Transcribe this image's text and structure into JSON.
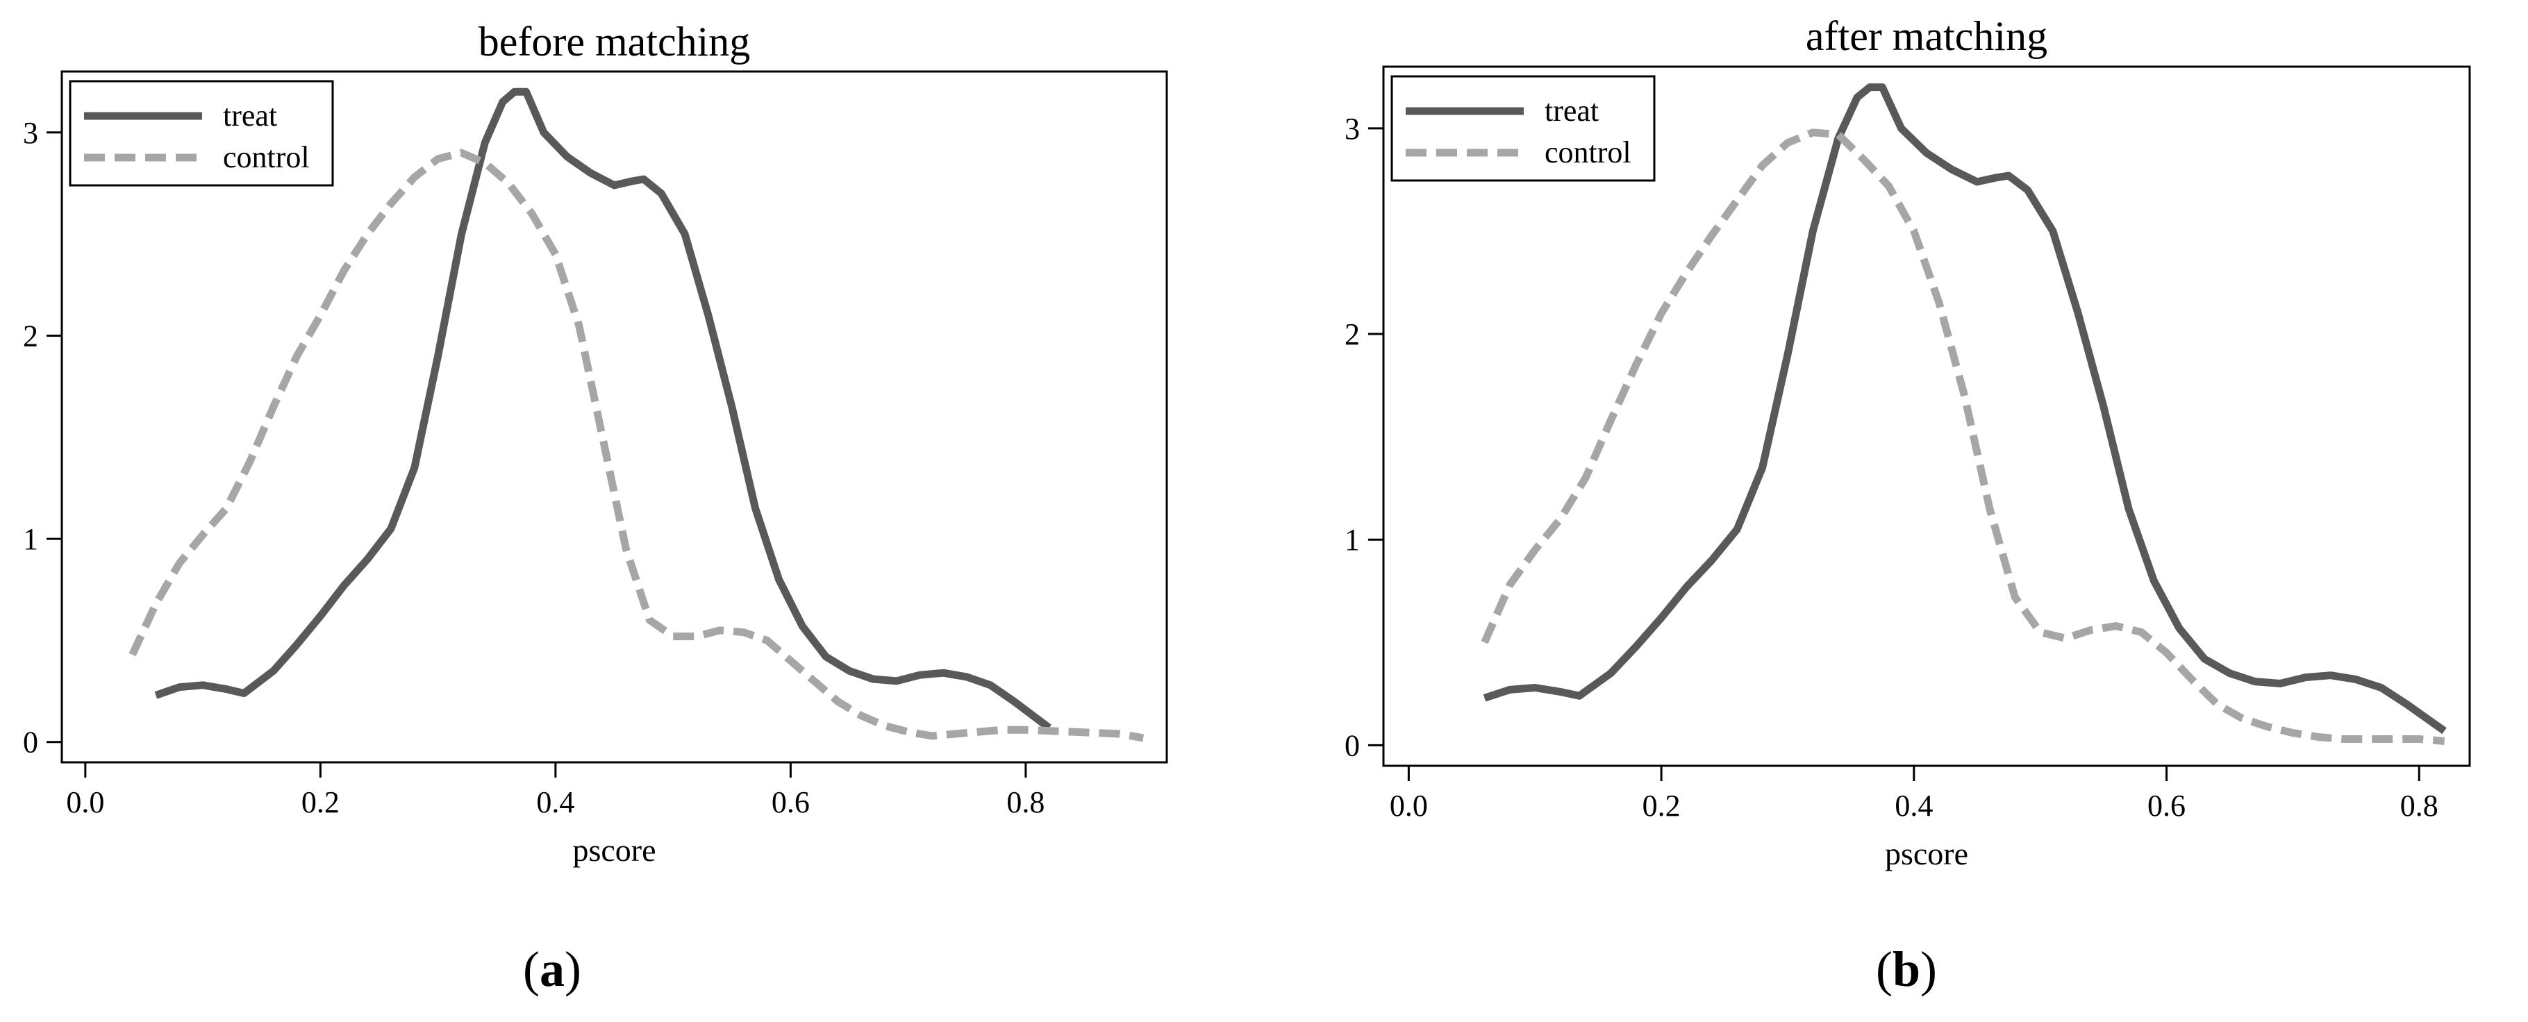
{
  "figure": {
    "panel_labels": [
      "a",
      "b"
    ]
  },
  "colors": {
    "treat": "#595959",
    "control": "#a6a6a6",
    "axis": "#000000"
  },
  "chart_data": [
    {
      "type": "line",
      "title": "before matching",
      "xlabel": "pscore",
      "ylabel": "",
      "xlim": [
        -0.02,
        0.92
      ],
      "ylim": [
        -0.1,
        3.3
      ],
      "xticks": [
        0.0,
        0.2,
        0.4,
        0.6,
        0.8
      ],
      "xtick_labels": [
        "0.0",
        "0.2",
        "0.4",
        "0.6",
        "0.8"
      ],
      "yticks": [
        0,
        1,
        2,
        3
      ],
      "ytick_labels": [
        "0",
        "1",
        "2",
        "3"
      ],
      "legend": "top-left",
      "grid": false,
      "series": [
        {
          "name": "treat",
          "style": "solid",
          "x": [
            0.06,
            0.08,
            0.1,
            0.12,
            0.135,
            0.16,
            0.18,
            0.2,
            0.22,
            0.24,
            0.26,
            0.28,
            0.3,
            0.32,
            0.34,
            0.355,
            0.365,
            0.375,
            0.39,
            0.41,
            0.43,
            0.45,
            0.465,
            0.475,
            0.49,
            0.51,
            0.53,
            0.55,
            0.57,
            0.59,
            0.61,
            0.63,
            0.65,
            0.67,
            0.69,
            0.71,
            0.73,
            0.75,
            0.77,
            0.79,
            0.82
          ],
          "y": [
            0.23,
            0.27,
            0.28,
            0.26,
            0.24,
            0.35,
            0.48,
            0.62,
            0.77,
            0.9,
            1.05,
            1.35,
            1.9,
            2.5,
            2.95,
            3.15,
            3.2,
            3.2,
            3.0,
            2.88,
            2.8,
            2.74,
            2.76,
            2.77,
            2.7,
            2.5,
            2.1,
            1.65,
            1.15,
            0.8,
            0.57,
            0.42,
            0.35,
            0.31,
            0.3,
            0.33,
            0.34,
            0.32,
            0.28,
            0.2,
            0.07
          ]
        },
        {
          "name": "control",
          "style": "dashed",
          "x": [
            0.04,
            0.06,
            0.08,
            0.1,
            0.12,
            0.14,
            0.16,
            0.18,
            0.2,
            0.22,
            0.24,
            0.26,
            0.28,
            0.3,
            0.32,
            0.34,
            0.36,
            0.38,
            0.4,
            0.42,
            0.44,
            0.46,
            0.48,
            0.5,
            0.52,
            0.54,
            0.56,
            0.58,
            0.6,
            0.62,
            0.64,
            0.66,
            0.68,
            0.7,
            0.72,
            0.74,
            0.76,
            0.78,
            0.8,
            0.84,
            0.88,
            0.9
          ],
          "y": [
            0.43,
            0.68,
            0.88,
            1.02,
            1.15,
            1.38,
            1.65,
            1.9,
            2.1,
            2.32,
            2.5,
            2.65,
            2.78,
            2.87,
            2.9,
            2.85,
            2.75,
            2.6,
            2.4,
            2.05,
            1.5,
            0.95,
            0.6,
            0.52,
            0.52,
            0.55,
            0.54,
            0.5,
            0.4,
            0.3,
            0.2,
            0.13,
            0.08,
            0.05,
            0.03,
            0.04,
            0.05,
            0.06,
            0.06,
            0.05,
            0.04,
            0.02
          ]
        }
      ]
    },
    {
      "type": "line",
      "title": "after matching",
      "xlabel": "pscore",
      "ylabel": "",
      "xlim": [
        -0.02,
        0.84
      ],
      "ylim": [
        -0.1,
        3.3
      ],
      "xticks": [
        0.0,
        0.2,
        0.4,
        0.6,
        0.8
      ],
      "xtick_labels": [
        "0.0",
        "0.2",
        "0.4",
        "0.6",
        "0.8"
      ],
      "yticks": [
        0,
        1,
        2,
        3
      ],
      "ytick_labels": [
        "0",
        "1",
        "2",
        "3"
      ],
      "legend": "top-left",
      "grid": false,
      "series": [
        {
          "name": "treat",
          "style": "solid",
          "x": [
            0.06,
            0.08,
            0.1,
            0.12,
            0.135,
            0.16,
            0.18,
            0.2,
            0.22,
            0.24,
            0.26,
            0.28,
            0.3,
            0.32,
            0.34,
            0.355,
            0.365,
            0.375,
            0.39,
            0.41,
            0.43,
            0.45,
            0.465,
            0.475,
            0.49,
            0.51,
            0.53,
            0.55,
            0.57,
            0.59,
            0.61,
            0.63,
            0.65,
            0.67,
            0.69,
            0.71,
            0.73,
            0.75,
            0.77,
            0.79,
            0.82
          ],
          "y": [
            0.23,
            0.27,
            0.28,
            0.26,
            0.24,
            0.35,
            0.48,
            0.62,
            0.77,
            0.9,
            1.05,
            1.35,
            1.9,
            2.5,
            2.95,
            3.15,
            3.2,
            3.2,
            3.0,
            2.88,
            2.8,
            2.74,
            2.76,
            2.77,
            2.7,
            2.5,
            2.1,
            1.65,
            1.15,
            0.8,
            0.57,
            0.42,
            0.35,
            0.31,
            0.3,
            0.33,
            0.34,
            0.32,
            0.28,
            0.2,
            0.07
          ]
        },
        {
          "name": "control",
          "style": "dashed",
          "x": [
            0.06,
            0.08,
            0.1,
            0.12,
            0.14,
            0.16,
            0.18,
            0.2,
            0.22,
            0.24,
            0.26,
            0.28,
            0.3,
            0.32,
            0.34,
            0.36,
            0.38,
            0.4,
            0.42,
            0.44,
            0.46,
            0.48,
            0.5,
            0.52,
            0.54,
            0.56,
            0.58,
            0.6,
            0.62,
            0.64,
            0.66,
            0.68,
            0.7,
            0.72,
            0.74,
            0.76,
            0.78,
            0.8,
            0.82
          ],
          "y": [
            0.5,
            0.78,
            0.95,
            1.1,
            1.3,
            1.58,
            1.85,
            2.1,
            2.3,
            2.48,
            2.65,
            2.82,
            2.93,
            2.98,
            2.97,
            2.85,
            2.72,
            2.5,
            2.15,
            1.7,
            1.15,
            0.72,
            0.55,
            0.52,
            0.56,
            0.58,
            0.55,
            0.45,
            0.32,
            0.2,
            0.13,
            0.09,
            0.06,
            0.04,
            0.03,
            0.03,
            0.03,
            0.03,
            0.02
          ]
        }
      ]
    }
  ]
}
